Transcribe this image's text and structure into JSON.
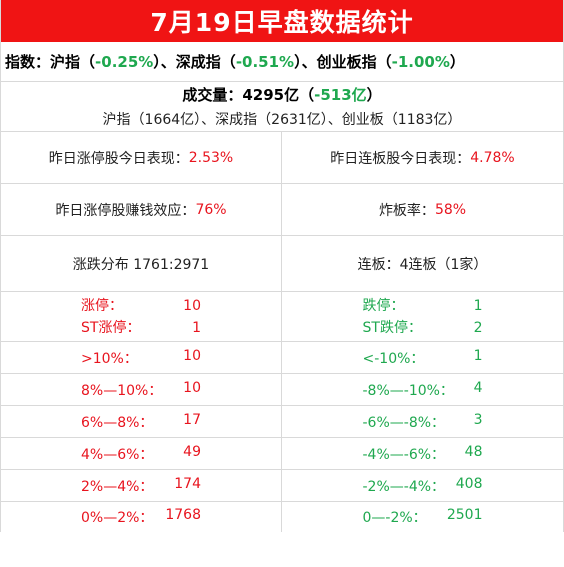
{
  "title": "7月19日早盘数据统计",
  "index_line": {
    "label": "指数：",
    "sh_name": "沪指（",
    "sh_value": "-0.25%",
    "sz_name": "）、深成指（",
    "sz_value": "-0.51%",
    "cy_name": "）、创业板指（",
    "cy_value": "-1.00%",
    "tail": "）"
  },
  "volume": {
    "label": "成交量：4295亿（",
    "change": "-513亿",
    "tail": "）",
    "detail": "沪指（1664亿）、深成指（2631亿）、创业板（1183亿）"
  },
  "stats": [
    {
      "left_label": "昨日涨停股今日表现：",
      "left_value": "2.53%",
      "right_label": "昨日连板股今日表现：",
      "right_value": "4.78%"
    },
    {
      "left_label": "昨日涨停股赚钱效应：",
      "left_value": "76%",
      "right_label": "炸板率：",
      "right_value": "58%"
    }
  ],
  "distribution": {
    "left": "涨跌分布 1761:2971",
    "right": "连板：4连板（1家）"
  },
  "limits": {
    "left": [
      {
        "label": "涨停：",
        "value": "10"
      },
      {
        "label": "ST涨停：",
        "value": "1"
      }
    ],
    "right": [
      {
        "label": "跌停：",
        "value": "1"
      },
      {
        "label": "ST跌停：",
        "value": "2"
      }
    ]
  },
  "ranges": [
    {
      "up_label": ">10%：",
      "up_value": "10",
      "down_label": "<-10%：",
      "down_value": "1"
    },
    {
      "up_label": "8%—10%：",
      "up_value": "10",
      "down_label": "-8%—-10%：",
      "down_value": "4"
    },
    {
      "up_label": "6%—8%：",
      "up_value": "17",
      "down_label": "-6%—-8%：",
      "down_value": "3"
    },
    {
      "up_label": "4%—6%：",
      "up_value": "49",
      "down_label": "-4%—-6%：",
      "down_value": "48"
    },
    {
      "up_label": "2%—4%：",
      "up_value": "174",
      "down_label": "-2%—-4%：",
      "down_value": "408"
    },
    {
      "up_label": "0%—2%：",
      "up_value": "1768",
      "down_label": "0—-2%：",
      "down_value": "2501"
    }
  ],
  "colors": {
    "title_bg": "#f01414",
    "up": "#e8141e",
    "down": "#1fa84f",
    "grid": "#d9d9d9"
  }
}
